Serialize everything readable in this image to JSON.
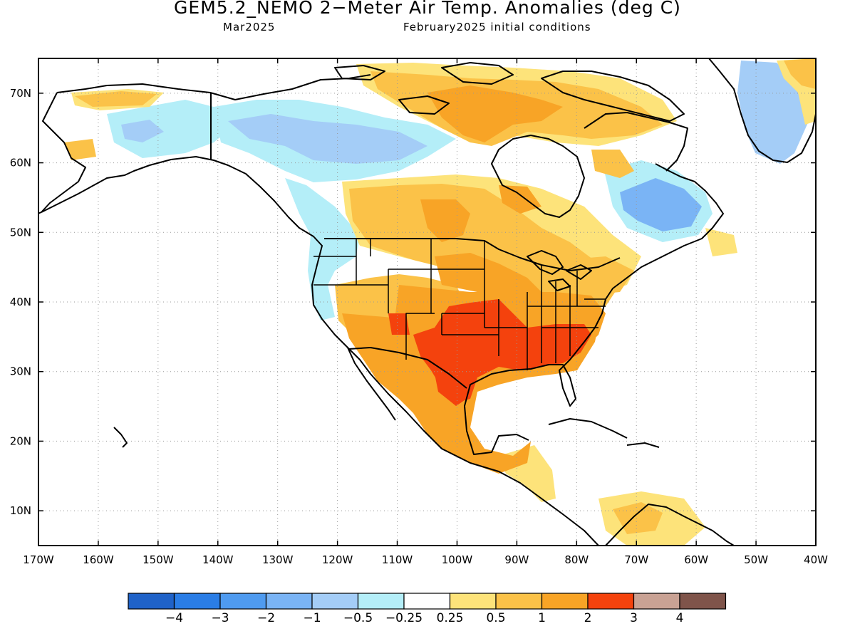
{
  "title": "GEM5.2_NEMO 2−Meter Air Temp. Anomalies (deg C)",
  "subtitle_left": "Mar2025",
  "subtitle_right": "February2025 initial conditions",
  "map": {
    "lon_range": [
      -170,
      -40
    ],
    "lat_range": [
      5,
      75
    ],
    "lon_ticks": [
      "170W",
      "160W",
      "150W",
      "140W",
      "130W",
      "120W",
      "110W",
      "100W",
      "90W",
      "80W",
      "70W",
      "60W",
      "50W",
      "40W"
    ],
    "lat_ticks": [
      "10N",
      "20N",
      "30N",
      "40N",
      "50N",
      "60N",
      "70N"
    ],
    "grid": "dotted",
    "land_outline_color": "#000000"
  },
  "colorbar": {
    "colors": [
      "#1f62c8",
      "#2a7de6",
      "#4f9bf0",
      "#7ab4f5",
      "#a4cdf7",
      "#b4eef8",
      "#ffffff",
      "#fde37a",
      "#fbc248",
      "#f8a426",
      "#f4420d",
      "#c9a294",
      "#7f544a"
    ],
    "labels": [
      "−4",
      "−3",
      "−2",
      "−1",
      "−0.5",
      "−0.25",
      "0.25",
      "0.5",
      "1",
      "2",
      "3",
      "4"
    ]
  },
  "anomaly_regions": [
    {
      "name": "us-southwest-south",
      "level": "1 to 2",
      "color": "#f8a426"
    },
    {
      "name": "southern-plains-southeast",
      "level": "2 to 3",
      "color": "#f4420d"
    },
    {
      "name": "mexico",
      "level": "1 to 2",
      "color": "#f8a426"
    },
    {
      "name": "canada-prairies",
      "level": "0.5 to 1",
      "color": "#fbc248"
    },
    {
      "name": "eastern-canada",
      "level": "0.5 to 1",
      "color": "#fbc248"
    },
    {
      "name": "arctic-archipelago",
      "level": "0.5 to 1",
      "color": "#fbc248"
    },
    {
      "name": "northern-canada",
      "level": "-0.5 to -1",
      "color": "#a4cdf7"
    },
    {
      "name": "labrador",
      "level": "-1 to -2",
      "color": "#7ab4f5"
    },
    {
      "name": "greenland",
      "level": "-1 to -2",
      "color": "#7ab4f5"
    },
    {
      "name": "alaska",
      "level": "-0.25 to -0.5",
      "color": "#b4eef8"
    },
    {
      "name": "pacific-northwest",
      "level": "-0.25 to -0.5",
      "color": "#b4eef8"
    }
  ]
}
